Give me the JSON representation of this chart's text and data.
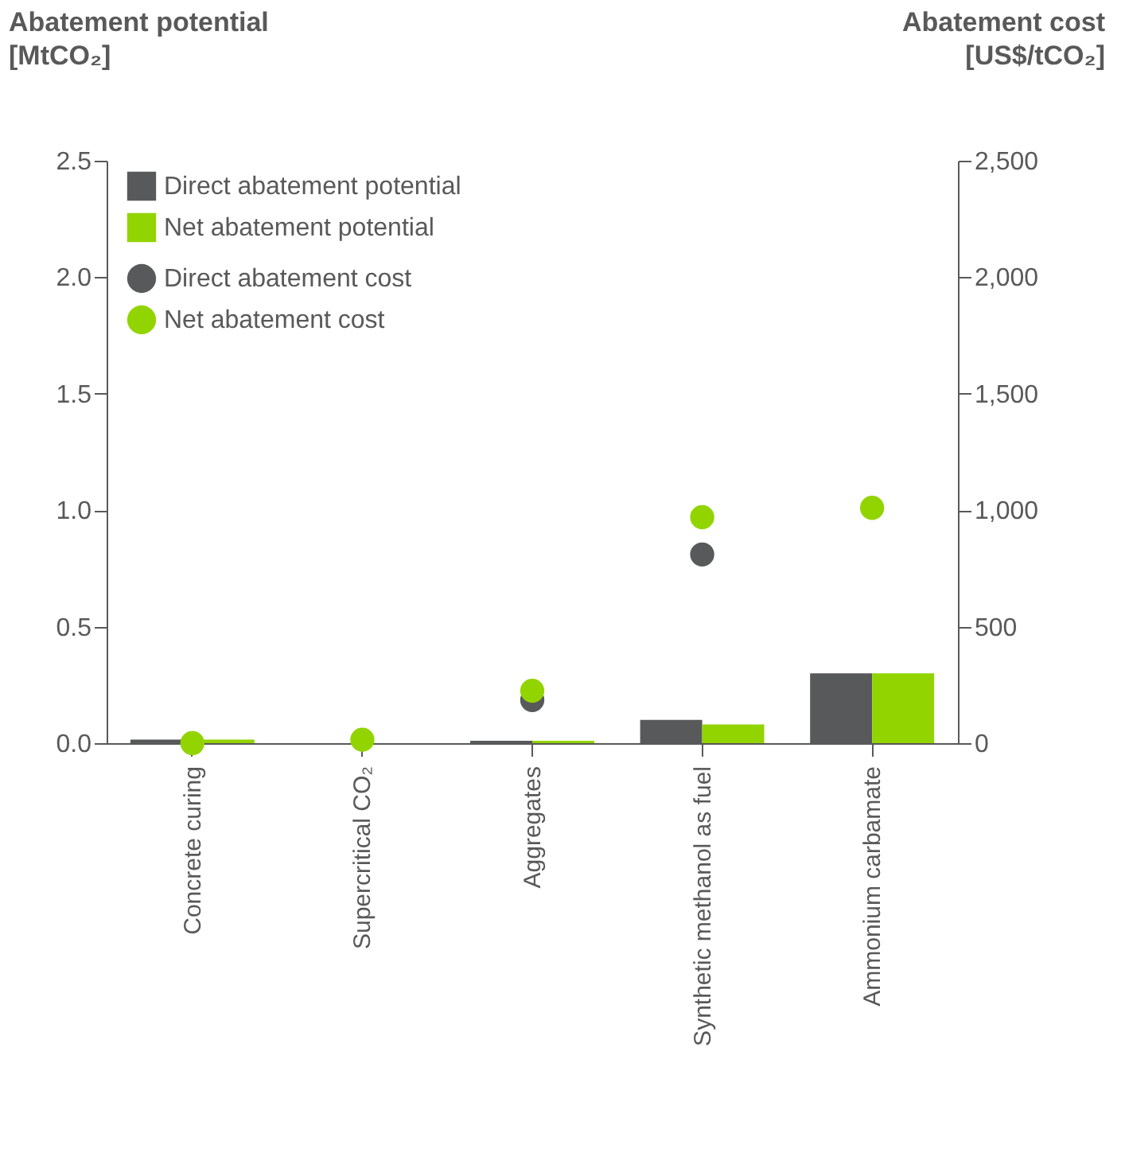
{
  "chart_data": {
    "type": "bar",
    "ylabel": "Abatement potential\n[MtCO₂]",
    "y2label": "Abatement cost\n[US$/tCO₂]",
    "categories": [
      "Concrete curing",
      "Supercritical CO₂",
      "Aggregates",
      "Synthetic methanol as fuel",
      "Ammonium carbamate"
    ],
    "series": [
      {
        "name": "Direct abatement potential",
        "color": "#58595b",
        "values": [
          0.015,
          0,
          0.01,
          0.1,
          0.3
        ]
      },
      {
        "name": "Net abatement potential",
        "color": "#92d400",
        "values": [
          0.015,
          0,
          0.01,
          0.08,
          0.3
        ]
      },
      {
        "name": "Direct abatement cost",
        "type": "scatter",
        "axis": "y2",
        "color": "#58595b",
        "values": [
          null,
          null,
          185,
          810,
          null
        ]
      },
      {
        "name": "Net abatement cost",
        "type": "scatter",
        "axis": "y2",
        "color": "#92d400",
        "values": [
          0,
          15,
          225,
          970,
          1010
        ]
      }
    ],
    "ylim": [
      0,
      2.5
    ],
    "yticks": [
      {
        "value": 0,
        "label": "0.0"
      },
      0.5,
      {
        "value": 1,
        "label": "1.0"
      },
      1.5,
      {
        "value": 2,
        "label": "2.0"
      },
      2.5
    ],
    "y2lim": [
      0,
      2500
    ],
    "y2ticks": [
      0,
      500,
      {
        "value": 1000,
        "label": "1,000"
      },
      {
        "value": 1500,
        "label": "1,500"
      },
      {
        "value": 2000,
        "label": "2,000"
      },
      {
        "value": 2500,
        "label": "2,500"
      }
    ],
    "marker": "circle",
    "legend": "top left",
    "grid": false
  }
}
